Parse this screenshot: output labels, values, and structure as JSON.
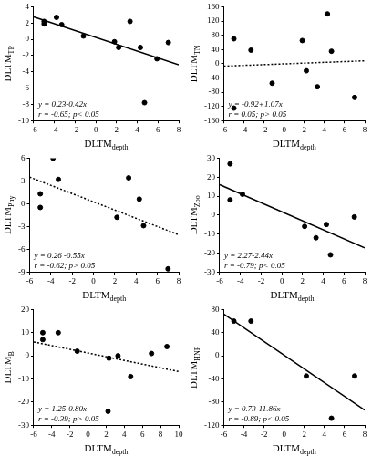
{
  "chart_data": [
    {
      "type": "scatter",
      "x_label": {
        "text": "DLTM",
        "sub": "depth"
      },
      "y_label": {
        "text": "DLTM",
        "sub": "TP"
      },
      "xlim": [
        -6,
        8
      ],
      "xticks": [
        -6,
        -4,
        -2,
        0,
        2,
        4,
        6,
        8
      ],
      "ylim": [
        -10,
        4
      ],
      "yticks": [
        -10,
        -8,
        -6,
        -4,
        -2,
        0,
        2,
        4
      ],
      "grid": false,
      "annotations": [
        "y = 0.23-0.42x",
        "r = -0.65; p< 0.05"
      ],
      "series": [
        {
          "type": "scatter",
          "marker": "circle",
          "color": "#000000",
          "x": [
            -5,
            -5,
            -3.8,
            -3.3,
            -1.2,
            1.8,
            2.2,
            3.3,
            4.3,
            4.7,
            5.9,
            7
          ],
          "values": [
            2.2,
            1.9,
            2.7,
            1.8,
            0.4,
            -0.3,
            -1.0,
            2.2,
            -1.0,
            -7.8,
            -2.4,
            -0.4
          ]
        },
        {
          "type": "line",
          "line_style": "solid",
          "color": "#000000",
          "x": [
            -6,
            8
          ],
          "values": [
            2.75,
            -3.13
          ]
        }
      ]
    },
    {
      "type": "scatter",
      "x_label": {
        "text": "DLTM",
        "sub": "depth"
      },
      "y_label": {
        "text": "DLTM",
        "sub": "TN"
      },
      "xlim": [
        -6,
        8
      ],
      "xticks": [
        -6,
        -4,
        -2,
        0,
        2,
        4,
        6,
        8
      ],
      "ylim": [
        -160,
        160
      ],
      "yticks": [
        -160,
        -120,
        -80,
        -40,
        0,
        40,
        80,
        120,
        160
      ],
      "grid": false,
      "annotations": [
        "y = -0.92+1.07x",
        "r = 0.05; p> 0.05"
      ],
      "series": [
        {
          "type": "scatter",
          "marker": "circle",
          "color": "#000000",
          "x": [
            -5,
            -5,
            -3.3,
            -1.2,
            1.8,
            2.2,
            3.3,
            4.3,
            4.7,
            7
          ],
          "values": [
            70,
            -125,
            38,
            -55,
            65,
            -20,
            -65,
            140,
            35,
            -95
          ]
        },
        {
          "type": "line",
          "line_style": "dotted",
          "color": "#000000",
          "x": [
            -6,
            8
          ],
          "values": [
            -7,
            8
          ]
        }
      ]
    },
    {
      "type": "scatter",
      "x_label": {
        "text": "DLTM",
        "sub": "depth"
      },
      "y_label": {
        "text": "DLTM",
        "sub": "Phy"
      },
      "xlim": [
        -6,
        8
      ],
      "xticks": [
        -6,
        -4,
        -2,
        0,
        2,
        4,
        6,
        8
      ],
      "ylim": [
        -9,
        6
      ],
      "yticks": [
        -9,
        -6,
        -3,
        0,
        3,
        6
      ],
      "grid": false,
      "annotations": [
        "y = 0.26 -0.55x",
        "r = -0.62; p> 0.05"
      ],
      "series": [
        {
          "type": "scatter",
          "marker": "circle",
          "color": "#000000",
          "x": [
            -5,
            -5,
            -3.8,
            -3.3,
            2.2,
            3.3,
            4.3,
            4.7,
            7
          ],
          "values": [
            1.3,
            -0.5,
            6,
            3.2,
            -1.8,
            3.4,
            0.6,
            -2.9,
            -8.6
          ]
        },
        {
          "type": "line",
          "line_style": "dotted",
          "color": "#000000",
          "x": [
            -6,
            8
          ],
          "values": [
            3.5,
            -4.1
          ]
        }
      ]
    },
    {
      "type": "scatter",
      "x_label": {
        "text": "DLTM",
        "sub": "depth"
      },
      "y_label": {
        "text": "DLTM",
        "sub": "Zoo"
      },
      "xlim": [
        -6,
        8
      ],
      "xticks": [
        -6,
        -4,
        -2,
        0,
        2,
        4,
        6,
        8
      ],
      "ylim": [
        -30,
        30
      ],
      "yticks": [
        -30,
        -20,
        -10,
        0,
        10,
        20,
        30
      ],
      "grid": false,
      "annotations": [
        "y = 2.27-2.44x",
        "r = -0.79; p< 0.05"
      ],
      "series": [
        {
          "type": "scatter",
          "marker": "circle",
          "color": "#000000",
          "x": [
            -5,
            -5,
            -3.8,
            2.2,
            3.3,
            4.3,
            4.7,
            7
          ],
          "values": [
            27,
            8,
            11,
            -6,
            -12,
            -5,
            -21,
            -1
          ]
        },
        {
          "type": "line",
          "line_style": "solid",
          "color": "#000000",
          "x": [
            -6,
            8
          ],
          "values": [
            16,
            -17.3
          ]
        }
      ]
    },
    {
      "type": "scatter",
      "x_label": {
        "text": "DLTM",
        "sub": "depth"
      },
      "y_label": {
        "text": "DLTM",
        "sub": "B"
      },
      "xlim": [
        -6,
        10
      ],
      "xticks": [
        -6,
        -4,
        -2,
        0,
        2,
        4,
        6,
        8,
        10
      ],
      "ylim": [
        -30,
        20
      ],
      "yticks": [
        -30,
        -20,
        -10,
        0,
        10,
        20
      ],
      "grid": false,
      "annotations": [
        "y = 1.25-0.80x",
        "r = -0.39; p> 0.05"
      ],
      "series": [
        {
          "type": "scatter",
          "marker": "circle",
          "color": "#000000",
          "x": [
            -5,
            -5,
            -3.3,
            -1.2,
            2.2,
            2.3,
            3.3,
            4.7,
            7,
            8.7
          ],
          "values": [
            10,
            7,
            10,
            2,
            -24,
            -1,
            0,
            -9,
            1,
            4
          ]
        },
        {
          "type": "line",
          "line_style": "dotted",
          "color": "#000000",
          "x": [
            -6,
            10
          ],
          "values": [
            6,
            -6.8
          ]
        }
      ]
    },
    {
      "type": "scatter",
      "x_label": {
        "text": "DLTM",
        "sub": "depth"
      },
      "y_label": {
        "text": "DLTM",
        "sub": "HNF"
      },
      "xlim": [
        -6,
        8
      ],
      "xticks": [
        -6,
        -4,
        -2,
        0,
        2,
        4,
        6,
        8
      ],
      "ylim": [
        -120,
        80
      ],
      "yticks": [
        -120,
        -80,
        -40,
        0,
        40,
        80
      ],
      "grid": false,
      "annotations": [
        "y = 0.73-11.86x",
        "r = -0.89; p< 0.05"
      ],
      "series": [
        {
          "type": "scatter",
          "marker": "circle",
          "color": "#000000",
          "x": [
            -5,
            -3.3,
            2.2,
            4.7,
            7
          ],
          "values": [
            60,
            60,
            -35,
            -108,
            -35
          ]
        },
        {
          "type": "line",
          "line_style": "solid",
          "color": "#000000",
          "x": [
            -6,
            8
          ],
          "values": [
            72,
            -94
          ]
        }
      ]
    }
  ]
}
